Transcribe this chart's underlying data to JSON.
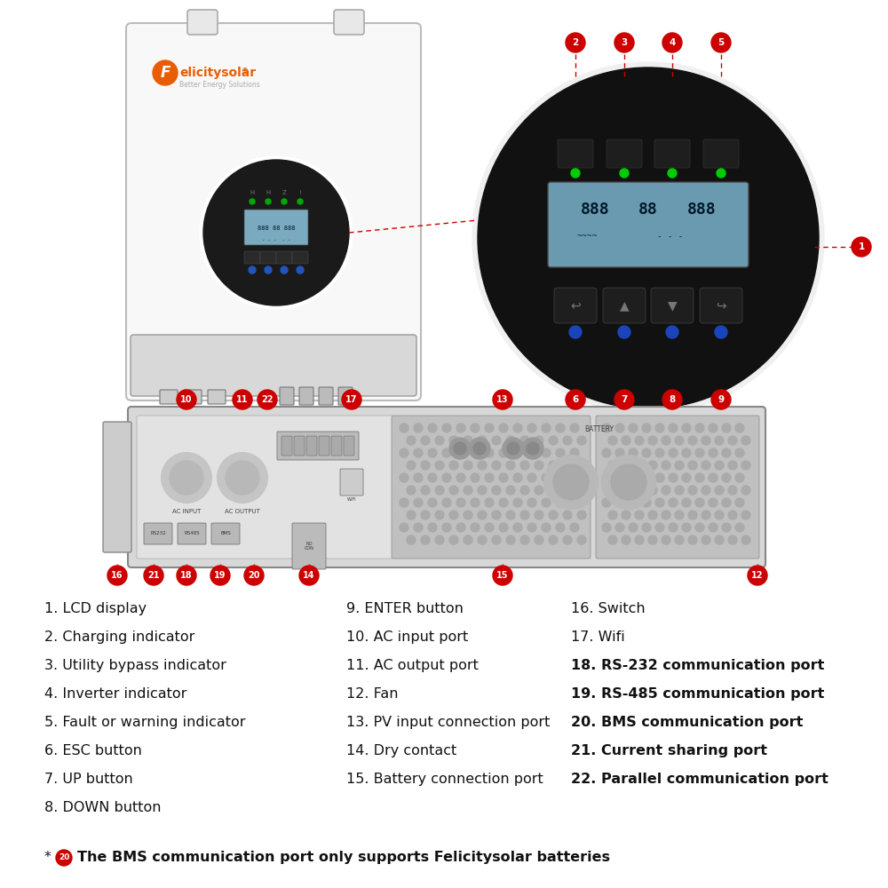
{
  "bg_color": "#ffffff",
  "red_color": "#cc0000",
  "legend_col0": [
    {
      "num": "1",
      "text": "LCD display"
    },
    {
      "num": "2",
      "text": "Charging indicator"
    },
    {
      "num": "3",
      "text": "Utility bypass indicator"
    },
    {
      "num": "4",
      "text": "Inverter indicator"
    },
    {
      "num": "5",
      "text": "Fault or warning indicator"
    },
    {
      "num": "6",
      "text": "ESC button"
    },
    {
      "num": "7",
      "text": "UP button"
    },
    {
      "num": "8",
      "text": "DOWN button"
    }
  ],
  "legend_col1": [
    {
      "num": "9",
      "text": "ENTER button"
    },
    {
      "num": "10",
      "text": "AC input port"
    },
    {
      "num": "11",
      "text": "AC output port"
    },
    {
      "num": "12",
      "text": "Fan"
    },
    {
      "num": "13",
      "text": "PV input connection port"
    },
    {
      "num": "14",
      "text": "Dry contact"
    },
    {
      "num": "15",
      "text": "Battery connection port"
    }
  ],
  "legend_col2": [
    {
      "num": "16",
      "text": "Switch"
    },
    {
      "num": "17",
      "text": "Wifi"
    },
    {
      "num": "18",
      "text": "RS-232 communication port"
    },
    {
      "num": "19",
      "text": "RS-485 communication port"
    },
    {
      "num": "20",
      "text": "BMS communication port"
    },
    {
      "num": "21",
      "text": "Current sharing port"
    },
    {
      "num": "22",
      "text": "Parallel communication port"
    }
  ]
}
